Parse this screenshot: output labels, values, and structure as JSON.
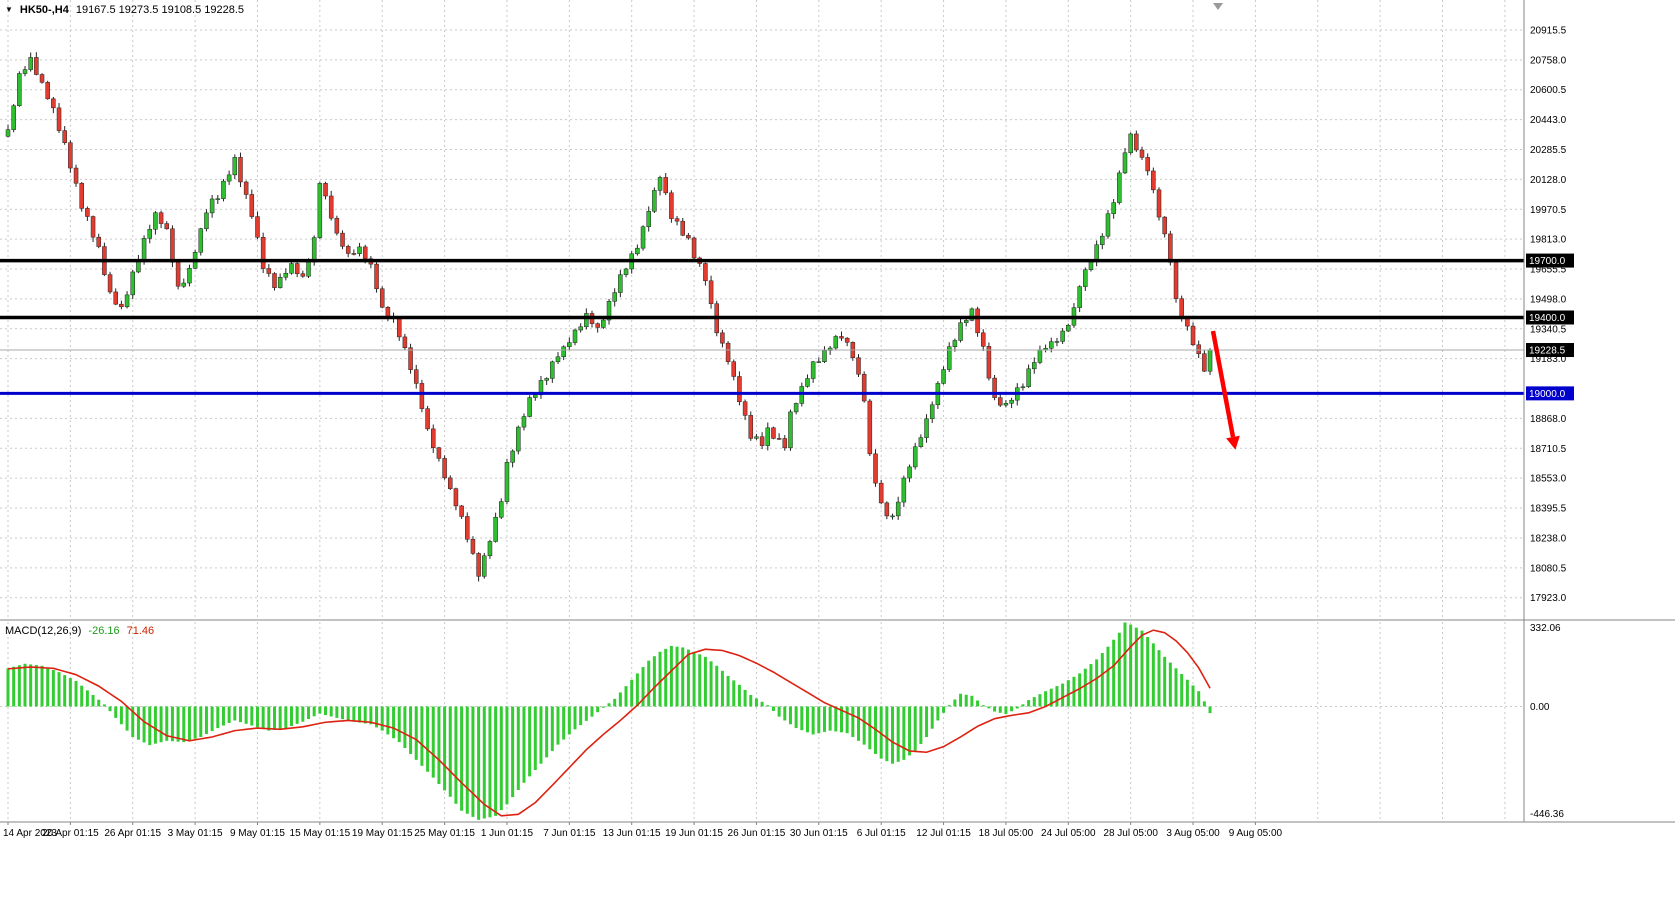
{
  "window": {
    "symbol_period": "HK50-,H4",
    "ohlc": "19167.5 19273.5 19108.5 19228.5"
  },
  "icons": {
    "symbol_dropdown": "▼"
  },
  "chart_data": {
    "type": "candlestick",
    "title": "HK50-,H4",
    "timeframe": "H4",
    "total_candles": 213,
    "candles_per_gridline": 11,
    "x_labels": [
      "14 Apr 2023",
      "20 Apr 01:15",
      "26 Apr 01:15",
      "3 May 01:15",
      "9 May 01:15",
      "15 May 01:15",
      "19 May 01:15",
      "25 May 01:15",
      "1 Jun 01:15",
      "7 Jun 01:15",
      "13 Jun 01:15",
      "19 Jun 01:15",
      "26 Jun 01:15",
      "30 Jun 01:15",
      "6 Jul 01:15",
      "12 Jul 01:15",
      "18 Jul 05:00",
      "24 Jul 05:00",
      "28 Jul 05:00",
      "3 Aug 05:00",
      "9 Aug 05:00"
    ],
    "price_axis_labels": [
      "20915.5",
      "20758.0",
      "20600.5",
      "20443.0",
      "20285.5",
      "20128.0",
      "19970.5",
      "19813.0",
      "19655.5",
      "19498.0",
      "19340.5",
      "19183.0",
      "18868.0",
      "18710.5",
      "18553.0",
      "18395.5",
      "18238.0",
      "18080.5",
      "17923.0"
    ],
    "price_range": {
      "top": 21073.5,
      "bottom": 17816.0
    },
    "levels": [
      {
        "value": 19700.0,
        "label": "19700.0",
        "color": "#000000",
        "badge_bg": "#000000",
        "width": 3.5
      },
      {
        "value": 19400.0,
        "label": "19400.0",
        "color": "#000000",
        "badge_bg": "#000000",
        "width": 3.5
      },
      {
        "value": 19000.0,
        "label": "19000.0",
        "color": "#0000cd",
        "badge_bg": "#0000cd",
        "width": 3
      }
    ],
    "current_price": {
      "value": 19228.5,
      "label": "19228.5",
      "badge_bg": "#000000",
      "line_color": "#a8a8a8"
    },
    "close_waypoints": [
      [
        0,
        20390
      ],
      [
        2,
        20680
      ],
      [
        4,
        20760
      ],
      [
        6,
        20625
      ],
      [
        8,
        20495
      ],
      [
        11,
        20205
      ],
      [
        13,
        19995
      ],
      [
        16,
        19755
      ],
      [
        18,
        19520
      ],
      [
        20,
        19440
      ],
      [
        22,
        19625
      ],
      [
        24,
        19810
      ],
      [
        26,
        19940
      ],
      [
        28,
        19860
      ],
      [
        30,
        19545
      ],
      [
        32,
        19650
      ],
      [
        35,
        19965
      ],
      [
        37,
        20045
      ],
      [
        40,
        20230
      ],
      [
        43,
        19940
      ],
      [
        45,
        19675
      ],
      [
        47,
        19570
      ],
      [
        50,
        19675
      ],
      [
        52,
        19600
      ],
      [
        54,
        19810
      ],
      [
        55,
        20125
      ],
      [
        58,
        19835
      ],
      [
        60,
        19730
      ],
      [
        62,
        19755
      ],
      [
        64,
        19675
      ],
      [
        66,
        19440
      ],
      [
        68,
        19385
      ],
      [
        70,
        19230
      ],
      [
        72,
        19045
      ],
      [
        74,
        18805
      ],
      [
        76,
        18650
      ],
      [
        78,
        18490
      ],
      [
        80,
        18335
      ],
      [
        82,
        18150
      ],
      [
        83,
        18045
      ],
      [
        85,
        18230
      ],
      [
        87,
        18440
      ],
      [
        88,
        18625
      ],
      [
        90,
        18805
      ],
      [
        92,
        18965
      ],
      [
        95,
        19095
      ],
      [
        97,
        19200
      ],
      [
        99,
        19280
      ],
      [
        102,
        19415
      ],
      [
        104,
        19335
      ],
      [
        107,
        19545
      ],
      [
        109,
        19675
      ],
      [
        111,
        19780
      ],
      [
        113,
        19965
      ],
      [
        115,
        20150
      ],
      [
        117,
        19940
      ],
      [
        120,
        19810
      ],
      [
        121,
        19730
      ],
      [
        123,
        19600
      ],
      [
        125,
        19335
      ],
      [
        127,
        19175
      ],
      [
        129,
        18965
      ],
      [
        131,
        18780
      ],
      [
        133,
        18730
      ],
      [
        134,
        18805
      ],
      [
        137,
        18730
      ],
      [
        138,
        18885
      ],
      [
        141,
        19095
      ],
      [
        142,
        19150
      ],
      [
        145,
        19255
      ],
      [
        147,
        19310
      ],
      [
        149,
        19200
      ],
      [
        151,
        18965
      ],
      [
        152,
        18675
      ],
      [
        154,
        18410
      ],
      [
        156,
        18335
      ],
      [
        158,
        18545
      ],
      [
        160,
        18700
      ],
      [
        162,
        18860
      ],
      [
        164,
        19045
      ],
      [
        166,
        19230
      ],
      [
        168,
        19360
      ],
      [
        170,
        19440
      ],
      [
        172,
        19230
      ],
      [
        174,
        18965
      ],
      [
        176,
        18940
      ],
      [
        179,
        19045
      ],
      [
        181,
        19175
      ],
      [
        183,
        19255
      ],
      [
        185,
        19280
      ],
      [
        186,
        19310
      ],
      [
        188,
        19440
      ],
      [
        189,
        19570
      ],
      [
        191,
        19705
      ],
      [
        193,
        19835
      ],
      [
        195,
        20020
      ],
      [
        197,
        20285
      ],
      [
        198,
        20360
      ],
      [
        200,
        20230
      ],
      [
        201,
        20180
      ],
      [
        203,
        19940
      ],
      [
        205,
        19705
      ],
      [
        206,
        19490
      ],
      [
        208,
        19335
      ],
      [
        210,
        19200
      ],
      [
        211,
        19125
      ],
      [
        212,
        19228.5
      ]
    ],
    "annotation_arrow": {
      "from": [
        1213,
        331
      ],
      "to": [
        1233,
        437
      ],
      "color": "#ff0000"
    },
    "macd": {
      "label": "MACD(12,26,9)",
      "value_main": "-26.16",
      "value_signal": "71.46",
      "scale_max": 332.06,
      "scale_min": -446.36,
      "axis_labels": [
        "332.06",
        "0.00",
        "-446.36"
      ],
      "histogram_color": "#33cc33",
      "signal_color": "#dd2211",
      "histogram_waypoints": [
        [
          0,
          150
        ],
        [
          3,
          168
        ],
        [
          6,
          160
        ],
        [
          9,
          135
        ],
        [
          12,
          100
        ],
        [
          15,
          45
        ],
        [
          17,
          8
        ],
        [
          19,
          -45
        ],
        [
          22,
          -120
        ],
        [
          25,
          -152
        ],
        [
          28,
          -135
        ],
        [
          31,
          -140
        ],
        [
          34,
          -120
        ],
        [
          37,
          -85
        ],
        [
          40,
          -55
        ],
        [
          43,
          -75
        ],
        [
          46,
          -95
        ],
        [
          49,
          -85
        ],
        [
          52,
          -60
        ],
        [
          55,
          -28
        ],
        [
          58,
          -45
        ],
        [
          61,
          -60
        ],
        [
          64,
          -70
        ],
        [
          66,
          -95
        ],
        [
          69,
          -140
        ],
        [
          72,
          -210
        ],
        [
          75,
          -280
        ],
        [
          78,
          -355
        ],
        [
          80,
          -410
        ],
        [
          83,
          -446
        ],
        [
          86,
          -430
        ],
        [
          88,
          -385
        ],
        [
          91,
          -300
        ],
        [
          94,
          -225
        ],
        [
          97,
          -150
        ],
        [
          100,
          -90
        ],
        [
          103,
          -40
        ],
        [
          105,
          -5
        ],
        [
          107,
          30
        ],
        [
          109,
          80
        ],
        [
          111,
          130
        ],
        [
          113,
          180
        ],
        [
          115,
          215
        ],
        [
          117,
          238
        ],
        [
          119,
          232
        ],
        [
          121,
          215
        ],
        [
          123,
          195
        ],
        [
          125,
          160
        ],
        [
          127,
          120
        ],
        [
          129,
          85
        ],
        [
          131,
          45
        ],
        [
          134,
          5
        ],
        [
          136,
          -40
        ],
        [
          139,
          -85
        ],
        [
          142,
          -110
        ],
        [
          145,
          -95
        ],
        [
          148,
          -105
        ],
        [
          151,
          -150
        ],
        [
          154,
          -205
        ],
        [
          156,
          -225
        ],
        [
          158,
          -210
        ],
        [
          160,
          -175
        ],
        [
          162,
          -120
        ],
        [
          164,
          -55
        ],
        [
          166,
          5
        ],
        [
          168,
          50
        ],
        [
          170,
          42
        ],
        [
          172,
          5
        ],
        [
          174,
          -20
        ],
        [
          176,
          -30
        ],
        [
          178,
          -8
        ],
        [
          180,
          25
        ],
        [
          183,
          60
        ],
        [
          186,
          90
        ],
        [
          189,
          130
        ],
        [
          192,
          185
        ],
        [
          194,
          235
        ],
        [
          196,
          290
        ],
        [
          197,
          330
        ],
        [
          198,
          322
        ],
        [
          200,
          298
        ],
        [
          202,
          248
        ],
        [
          204,
          195
        ],
        [
          206,
          150
        ],
        [
          208,
          105
        ],
        [
          210,
          60
        ],
        [
          211,
          20
        ],
        [
          212,
          -26.16
        ]
      ],
      "signal_waypoints": [
        [
          0,
          148
        ],
        [
          4,
          155
        ],
        [
          8,
          150
        ],
        [
          12,
          125
        ],
        [
          16,
          80
        ],
        [
          20,
          20
        ],
        [
          24,
          -60
        ],
        [
          28,
          -115
        ],
        [
          32,
          -135
        ],
        [
          36,
          -120
        ],
        [
          40,
          -95
        ],
        [
          44,
          -85
        ],
        [
          48,
          -90
        ],
        [
          52,
          -80
        ],
        [
          56,
          -62
        ],
        [
          60,
          -55
        ],
        [
          64,
          -62
        ],
        [
          68,
          -85
        ],
        [
          72,
          -130
        ],
        [
          76,
          -210
        ],
        [
          80,
          -300
        ],
        [
          84,
          -385
        ],
        [
          87,
          -430
        ],
        [
          90,
          -424
        ],
        [
          93,
          -378
        ],
        [
          96,
          -310
        ],
        [
          99,
          -240
        ],
        [
          102,
          -170
        ],
        [
          105,
          -110
        ],
        [
          108,
          -55
        ],
        [
          111,
          5
        ],
        [
          114,
          75
        ],
        [
          117,
          140
        ],
        [
          120,
          205
        ],
        [
          123,
          225
        ],
        [
          126,
          220
        ],
        [
          129,
          200
        ],
        [
          132,
          170
        ],
        [
          135,
          135
        ],
        [
          138,
          95
        ],
        [
          141,
          55
        ],
        [
          144,
          15
        ],
        [
          147,
          -15
        ],
        [
          150,
          -45
        ],
        [
          153,
          -90
        ],
        [
          156,
          -140
        ],
        [
          159,
          -175
        ],
        [
          162,
          -180
        ],
        [
          165,
          -158
        ],
        [
          168,
          -120
        ],
        [
          171,
          -78
        ],
        [
          174,
          -48
        ],
        [
          177,
          -35
        ],
        [
          180,
          -25
        ],
        [
          183,
          0
        ],
        [
          186,
          35
        ],
        [
          189,
          70
        ],
        [
          192,
          110
        ],
        [
          195,
          160
        ],
        [
          198,
          235
        ],
        [
          200,
          280
        ],
        [
          202,
          300
        ],
        [
          204,
          290
        ],
        [
          206,
          258
        ],
        [
          208,
          212
        ],
        [
          210,
          152
        ],
        [
          211,
          112
        ],
        [
          212,
          71.46
        ]
      ]
    },
    "colors": {
      "up": "#2fbe2f",
      "down": "#e23b30",
      "outline": "#222222",
      "grid": "#c9c9c9",
      "separator": "#848484",
      "axis_text": "#000000"
    }
  }
}
